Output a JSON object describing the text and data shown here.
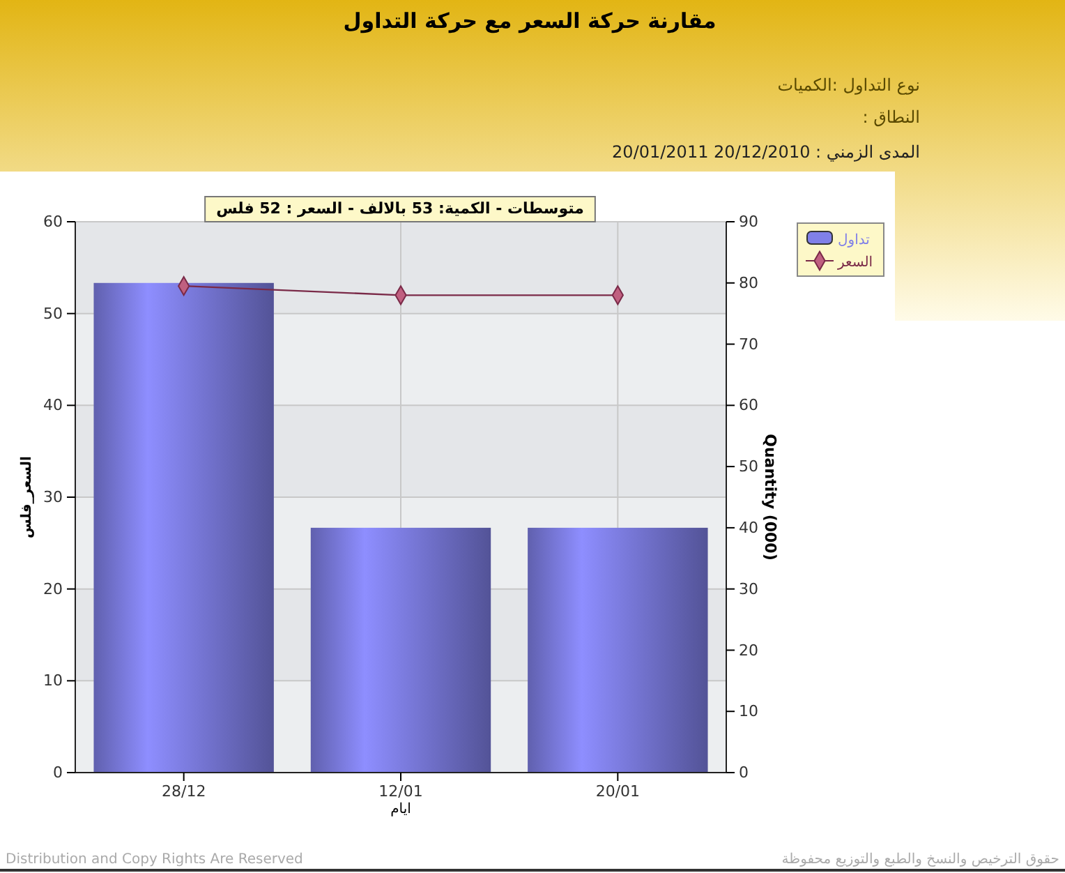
{
  "chart_data": {
    "type": "bar",
    "title": "مقارنة حركة السعر مع حركة التداول",
    "xlabel": "ايام",
    "ylabel": "السعر_فلس",
    "y2label": "Quantity (000)",
    "categories": [
      "28/12",
      "12/01",
      "20/01"
    ],
    "series": [
      {
        "name": "تداول",
        "axis": "y2",
        "color": "#8080e8",
        "values": [
          80,
          40,
          40
        ]
      },
      {
        "name": "السعر",
        "type": "line",
        "axis": "y",
        "color": "#7a2a48",
        "marker": "diamond",
        "values": [
          53,
          52,
          52
        ]
      }
    ],
    "ylim": [
      0,
      60
    ],
    "yticks": [
      0,
      10,
      20,
      30,
      40,
      50,
      60
    ],
    "y2lim": [
      0,
      90
    ],
    "y2ticks": [
      0,
      10,
      20,
      30,
      40,
      50,
      60,
      70,
      80,
      90
    ],
    "grid": true,
    "legend": "top right",
    "annotations": [
      "نوع التداول :الكميات",
      "النطاق :",
      "المدى الزمني : 20/12/2010 20/01/2011",
      "متوسطات - الكمية: 53 بالالف  - السعر : 52 فلس",
      "Distribution and Copy Rights Are Reserved",
      "حقوق الترخيص والنسخ والطبع والتوزيع محفوظة"
    ]
  }
}
